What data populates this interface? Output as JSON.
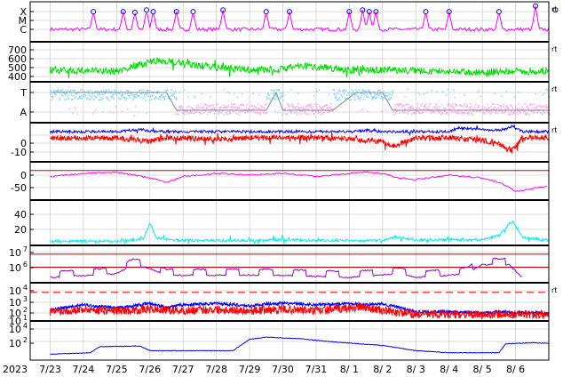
{
  "chart_data": {
    "type": "line",
    "x_tick_labels": [
      "7/23",
      "7/24",
      "7/25",
      "7/26",
      "7/27",
      "7/28",
      "7/29",
      "7/30",
      "7/31",
      "8/ 1",
      "8/ 2",
      "8/ 3",
      "8/ 4",
      "8/ 5",
      "8/ 6"
    ],
    "year_label": "2023",
    "colors": {
      "magenta": "#ff00ff",
      "green": "#00dd00",
      "lightblue": "#88d8ff",
      "pink": "#ffaaee",
      "blue": "#0000ff",
      "red": "#ff0000",
      "purple": "#9900cc",
      "cyan": "#00eeee",
      "gray": "#808080"
    },
    "panels": [
      {
        "id": "xray-flares",
        "y_tick_labels": [
          "X",
          "M",
          "C"
        ],
        "series": [
          {
            "color": "magenta",
            "baseline_level": 2.5,
            "peaks_day": [
              1.3,
              2.2,
              2.55,
              2.9,
              3.1,
              3.8,
              4.3,
              5.2,
              6.5,
              7.2,
              9.0,
              9.4,
              9.6,
              9.8,
              11.3,
              12.0,
              13.5,
              14.6,
              15.2
            ],
            "peaks_level": [
              1.1,
              1.1,
              1.0,
              1.3,
              1.1,
              1.1,
              1.1,
              1.3,
              1.1,
              1.1,
              1.1,
              1.3,
              1.1,
              1.1,
              1.1,
              1.1,
              1.1,
              1.8,
              1.3
            ]
          }
        ],
        "right_mark": "rt"
      },
      {
        "id": "solar-wind-speed",
        "y_tick_labels": [
          "700",
          "600",
          "500",
          "400"
        ],
        "ylim": [
          300,
          750
        ],
        "series": [
          {
            "color": "green",
            "x_day": [
              0,
              1,
              2,
              2.5,
              3,
              3.5,
              4,
              5,
              6,
              6.5,
              7,
              7.5,
              8,
              8.5,
              9,
              10,
              11,
              12,
              13,
              14,
              15.5
            ],
            "y": [
              420,
              410,
              400,
              470,
              520,
              540,
              500,
              450,
              420,
              420,
              430,
              480,
              460,
              440,
              420,
              420,
              410,
              400,
              390,
              400,
              400
            ]
          }
        ],
        "right_mark": "rt"
      },
      {
        "id": "imf-direction",
        "y_tick_labels": [
          "T",
          "A"
        ],
        "series": [
          {
            "color": "lightblue",
            "note": "toward sector"
          },
          {
            "color": "pink",
            "note": "away sector"
          },
          {
            "color": "gray",
            "x_day": [
              0,
              1,
              2,
              2.5,
              3,
              3.5,
              3.8,
              4,
              6.5,
              6.8,
              7.0,
              8.5,
              9.2,
              10.0,
              10.3,
              14.0,
              15.5
            ],
            "y": [
              1,
              1,
              1,
              1,
              1,
              1,
              0,
              0,
              0,
              1,
              0,
              0,
              1,
              1,
              0,
              0,
              0
            ]
          }
        ],
        "right_mark": "rt"
      },
      {
        "id": "imf-bz",
        "y_tick_labels": [
          "0",
          "-10"
        ],
        "ylim": [
          -17,
          10
        ],
        "series": [
          {
            "color": "blue",
            "x_day": [
              0,
              2,
              2.8,
              3,
              5,
              7,
              9,
              9.5,
              10,
              12,
              12.3,
              13.5,
              13.9,
              14.2,
              15.5
            ],
            "y": [
              5,
              5,
              7,
              5,
              5,
              5,
              5,
              6,
              5,
              5,
              8,
              6,
              9,
              5,
              5
            ]
          },
          {
            "color": "red",
            "x_day": [
              0,
              2,
              3,
              3.5,
              5,
              6,
              7,
              8,
              9,
              10,
              10.3,
              11,
              12,
              13,
              13.5,
              13.9,
              14.2,
              15.5
            ],
            "y": [
              0,
              0,
              -3,
              0,
              -1,
              0,
              0,
              0,
              -1,
              -3,
              -7,
              0,
              0,
              -2,
              -5,
              -10,
              0,
              0
            ]
          }
        ],
        "right_mark": "rt"
      },
      {
        "id": "dst-index",
        "y_tick_labels": [
          "0",
          "-50"
        ],
        "ylim": [
          -90,
          20
        ],
        "series": [
          {
            "color": "magenta",
            "x_day": [
              0,
              1,
              2,
              3,
              3.5,
              4,
              5,
              6,
              7,
              8,
              9,
              9.5,
              10,
              10.5,
              11,
              12,
              12.5,
              13,
              13.5,
              13.8,
              14,
              14.5,
              15,
              15.5
            ],
            "y": [
              -20,
              -10,
              -5,
              -25,
              -40,
              -20,
              -10,
              -15,
              -10,
              -20,
              -10,
              -5,
              -10,
              -25,
              -30,
              -15,
              -20,
              -25,
              -40,
              -55,
              -70,
              -60,
              -50,
              -45
            ]
          }
        ]
      },
      {
        "id": "proton-density",
        "y_tick_labels": [
          "40",
          "20"
        ],
        "ylim": [
          0,
          55
        ],
        "series": [
          {
            "color": "cyan",
            "x_day": [
              0,
              1,
              2,
              2.8,
              3.0,
              3.2,
              4,
              5,
              6,
              7,
              8,
              9,
              10,
              10.4,
              11,
              12,
              13,
              13.5,
              13.9,
              14.2,
              15,
              15.5
            ],
            "y": [
              2,
              2,
              2,
              5,
              27,
              6,
              3,
              3,
              3,
              4,
              3,
              3,
              3,
              8,
              4,
              4,
              4,
              10,
              30,
              8,
              3,
              2
            ]
          }
        ]
      },
      {
        "id": "electron-flux",
        "y_tick_labels": [
          "10^7",
          "10^6"
        ],
        "log": true,
        "ylim": [
          100000,
          30000000
        ],
        "series": [
          {
            "color": "purple",
            "x_day": [
              0,
              2,
              2.5,
              3.0,
              3.5,
              5,
              6,
              7,
              9,
              10.5,
              11,
              12,
              12.5,
              13.0,
              13.8,
              14.2,
              15.5
            ],
            "y": [
              200000,
              400000,
              2000000,
              1000000,
              300000,
              300000,
              300000,
              300000,
              200000,
              400000,
              200000,
              300000,
              400000,
              2000000,
              2000000,
              200000,
              200000
            ]
          }
        ]
      },
      {
        "id": "proton-flux",
        "y_tick_labels": [
          "10^4",
          "10^3",
          "10^2",
          "10^1"
        ],
        "log": true,
        "ylim": [
          5,
          40000
        ],
        "series": [
          {
            "color": "blue",
            "x_day": [
              0,
              1,
              2,
              2.5,
              3,
              3.5,
              4,
              5,
              6,
              6.5,
              7,
              8,
              9,
              9.5,
              10,
              10.5,
              11,
              12,
              13,
              13.5,
              14,
              15.5
            ],
            "y": [
              50,
              200,
              80,
              150,
              300,
              100,
              200,
              300,
              150,
              250,
              300,
              200,
              300,
              200,
              250,
              100,
              30,
              30,
              20,
              30,
              25,
              20
            ]
          },
          {
            "color": "red",
            "x_day": [
              0,
              1,
              2,
              3,
              4,
              5,
              6,
              7,
              8,
              9,
              9.5,
              10,
              11,
              12,
              13,
              14,
              15.5
            ],
            "y": [
              30,
              60,
              40,
              60,
              40,
              60,
              40,
              60,
              40,
              80,
              100,
              40,
              15,
              15,
              12,
              15,
              12
            ]
          }
        ],
        "reference_level": 6000,
        "right_mark": "rt"
      },
      {
        "id": "high-energy-proton",
        "y_tick_labels": [
          "10^4",
          "10^2"
        ],
        "log": true,
        "ylim": [
          1,
          100000
        ],
        "series": [
          {
            "color": "blue",
            "x_day": [
              0,
              1.2,
              1.5,
              2.7,
              3.0,
              5.5,
              6.0,
              6.5,
              7.5,
              8.5,
              10,
              11,
              12,
              13,
              13.5,
              13.7,
              14.5,
              15.5
            ],
            "y": [
              3,
              5,
              40,
              50,
              10,
              10,
              500,
              1000,
              600,
              200,
              60,
              10,
              5,
              5,
              5,
              100,
              150,
              100
            ]
          }
        ]
      }
    ]
  }
}
